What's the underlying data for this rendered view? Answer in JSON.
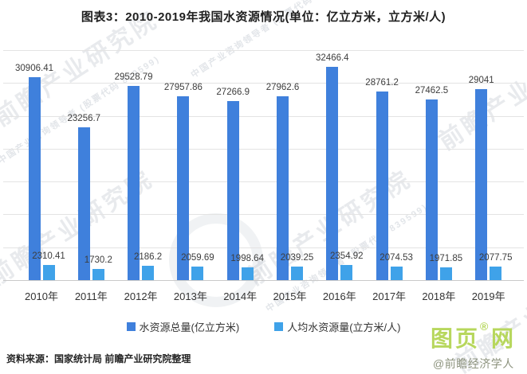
{
  "title": "图表3：2010-2019年我国水资源情况(单位：亿立方米，立方米/人)",
  "source": "资料来源：国家统计局 前瞻产业研究院整理",
  "watermark": {
    "text": "前瞻产业研究院",
    "subtext": "中国产业咨询领导者 (股票代码 839599)"
  },
  "branding": {
    "logo_prefix": "图页",
    "logo_suffix": "网",
    "reg_mark": "®",
    "app_credit": "@前瞻经济学人APP"
  },
  "chart_data": {
    "type": "bar",
    "title": "图表3：2010-2019年我国水资源情况(单位：亿立方米，立方米/人)",
    "categories": [
      "2010年",
      "2011年",
      "2012年",
      "2013年",
      "2014年",
      "2015年",
      "2016年",
      "2017年",
      "2018年",
      "2019年"
    ],
    "series": [
      {
        "name": "水资源总量(亿立方米)",
        "color": "#3F80DC",
        "values": [
          30906.41,
          23256.7,
          29528.79,
          27957.86,
          27266.9,
          27962.6,
          32466.4,
          28761.2,
          27462.5,
          29041
        ],
        "labels": [
          "30906.41",
          "23256.7",
          "29528.79",
          "27957.86",
          "27266.9",
          "27962.6",
          "32466.4",
          "28761.2",
          "27462.5",
          "29041"
        ]
      },
      {
        "name": "人均水资源量(立方米/人)",
        "color": "#3FA2E9",
        "values": [
          2310.41,
          1730.2,
          2186.2,
          2059.69,
          1998.64,
          2039.25,
          2354.92,
          2074.53,
          1971.85,
          2077.75
        ],
        "labels": [
          "2310.41",
          "1730.2",
          "2186.2",
          "2059.69",
          "1998.64",
          "2039.25",
          "2354.92",
          "2074.53",
          "1971.85",
          "2077.75"
        ]
      }
    ],
    "xlabel": "",
    "ylabel": "",
    "ylim": [
      0,
      35000
    ],
    "grid_step": 5000,
    "grid": true,
    "y_axis_labels_visible": false,
    "legend_position": "bottom",
    "value_labels": true
  }
}
